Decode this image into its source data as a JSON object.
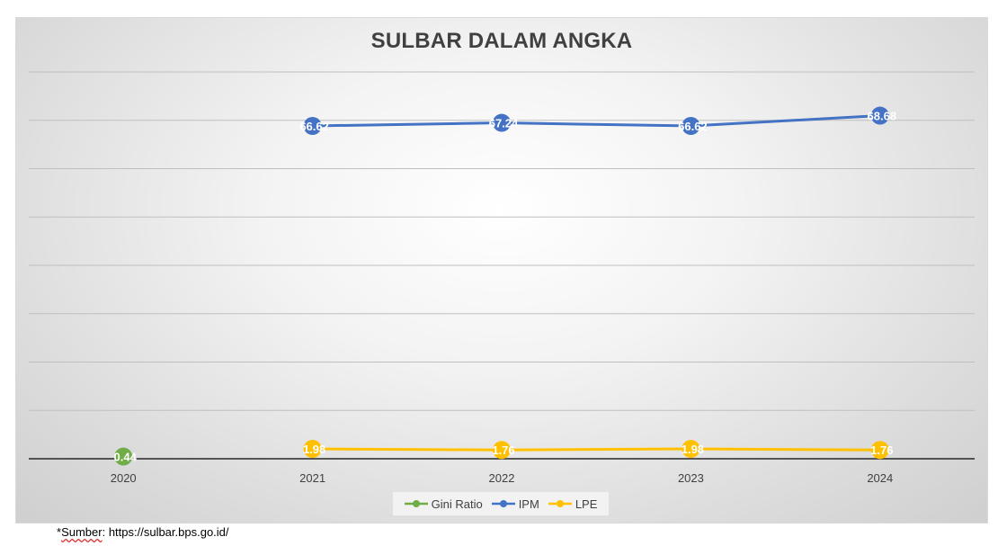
{
  "chart_data": {
    "type": "line",
    "title": "SULBAR DALAM ANGKA",
    "categories": [
      "2020",
      "2021",
      "2022",
      "2023",
      "2024"
    ],
    "series": [
      {
        "name": "Gini Ratio",
        "color": "#70ad47",
        "values": [
          0.44,
          null,
          null,
          null,
          null
        ],
        "labels": [
          "0.44",
          "",
          "",
          "",
          ""
        ]
      },
      {
        "name": "IPM",
        "color": "#4472c4",
        "values": [
          null,
          66.62,
          67.24,
          66.62,
          68.68
        ],
        "labels": [
          "",
          "66.62",
          "67.24",
          "66.62",
          "68.68"
        ]
      },
      {
        "name": "LPE",
        "color": "#ffc000",
        "values": [
          null,
          1.98,
          1.76,
          1.98,
          1.76
        ],
        "labels": [
          "",
          "1.98",
          "1.76",
          "1.98",
          "1.76"
        ]
      }
    ],
    "legend_position": "bottom",
    "grid": true
  },
  "footnote": {
    "prefix": "*",
    "label": "Sumber",
    "text": ": https://sulbar.bps.go.id/"
  }
}
